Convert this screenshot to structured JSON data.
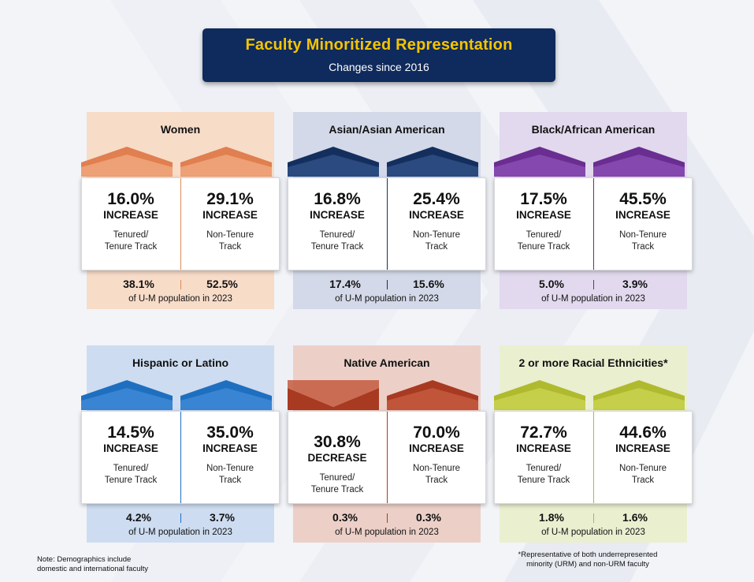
{
  "header": {
    "title": "Faculty Minoritized Representation",
    "subtitle": "Changes since 2016"
  },
  "chart_data": {
    "type": "table",
    "title": "Faculty Minoritized Representation",
    "subtitle": "Changes since 2016",
    "columns": [
      "Tenured/ Tenure Track",
      "Non-Tenure Track"
    ],
    "population_caption": "of U-M population in 2023",
    "groups": [
      {
        "name": "Women",
        "colors": {
          "bg": "#f7dcc8",
          "roof_dark": "#e07f4f",
          "roof_light": "#f0a67c",
          "divider": "#e08a5a"
        },
        "tenured": {
          "value": "16.0%",
          "change": "INCREASE",
          "label_1": "Tenured/",
          "label_2": "Tenure Track"
        },
        "non_tenure": {
          "value": "29.1%",
          "change": "INCREASE",
          "label_1": "Non-Tenure",
          "label_2": "Track"
        },
        "population": {
          "tenured": "38.1%",
          "non_tenure": "52.5%",
          "caption": "of U-M population in 2023"
        }
      },
      {
        "name": "Asian/Asian American",
        "colors": {
          "bg": "#d3d9e8",
          "roof_dark": "#142f5e",
          "roof_light": "#2e4f86",
          "divider": "#142f5e"
        },
        "tenured": {
          "value": "16.8%",
          "change": "INCREASE",
          "label_1": "Tenured/",
          "label_2": "Tenure Track"
        },
        "non_tenure": {
          "value": "25.4%",
          "change": "INCREASE",
          "label_1": "Non-Tenure",
          "label_2": "Track"
        },
        "population": {
          "tenured": "17.4%",
          "non_tenure": "15.6%",
          "caption": "of U-M population in 2023"
        }
      },
      {
        "name": "Black/African American",
        "colors": {
          "bg": "#e2d9ee",
          "roof_dark": "#6a2d91",
          "roof_light": "#8a4db3",
          "divider": "#6a2d91"
        },
        "tenured": {
          "value": "17.5%",
          "change": "INCREASE",
          "label_1": "Tenured/",
          "label_2": "Tenure Track"
        },
        "non_tenure": {
          "value": "45.5%",
          "change": "INCREASE",
          "label_1": "Non-Tenure",
          "label_2": "Track"
        },
        "population": {
          "tenured": "5.0%",
          "non_tenure": "3.9%",
          "caption": "of U-M population in 2023"
        }
      },
      {
        "name": "Hispanic or Latino",
        "colors": {
          "bg": "#cddcf0",
          "roof_dark": "#1f6fc0",
          "roof_light": "#3f8ad6",
          "divider": "#1f6fc0"
        },
        "tenured": {
          "value": "14.5%",
          "change": "INCREASE",
          "label_1": "Tenured/",
          "label_2": "Tenure Track"
        },
        "non_tenure": {
          "value": "35.0%",
          "change": "INCREASE",
          "label_1": "Non-Tenure",
          "label_2": "Track"
        },
        "population": {
          "tenured": "4.2%",
          "non_tenure": "3.7%",
          "caption": "of U-M population in 2023"
        }
      },
      {
        "name": "Native American",
        "colors": {
          "bg": "#ecd0c8",
          "roof_dark": "#a83a22",
          "roof_light": "#c45a3e",
          "divider": "#a83a22"
        },
        "tenured": {
          "value": "30.8%",
          "change": "DECREASE",
          "label_1": "Tenured/",
          "label_2": "Tenure Track"
        },
        "non_tenure": {
          "value": "70.0%",
          "change": "INCREASE",
          "label_1": "Non-Tenure",
          "label_2": "Track"
        },
        "population": {
          "tenured": "0.3%",
          "non_tenure": "0.3%",
          "caption": "of U-M population in 2023"
        }
      },
      {
        "name": "2 or more Racial Ethnicities*",
        "colors": {
          "bg": "#eaefd0",
          "roof_dark": "#b0ba2e",
          "roof_light": "#c9d24e",
          "divider": "#b0ba2e"
        },
        "tenured": {
          "value": "72.7%",
          "change": "INCREASE",
          "label_1": "Tenured/",
          "label_2": "Tenure Track"
        },
        "non_tenure": {
          "value": "44.6%",
          "change": "INCREASE",
          "label_1": "Non-Tenure",
          "label_2": "Track"
        },
        "population": {
          "tenured": "1.8%",
          "non_tenure": "1.6%",
          "caption": "of U-M population in 2023"
        }
      }
    ]
  },
  "notes": {
    "left_line_1": "Note: Demographics include",
    "left_line_2": "domestic and international faculty",
    "right_line_1": "*Representative of both underrepresented",
    "right_line_2": "minority (URM) and non-URM faculty"
  }
}
